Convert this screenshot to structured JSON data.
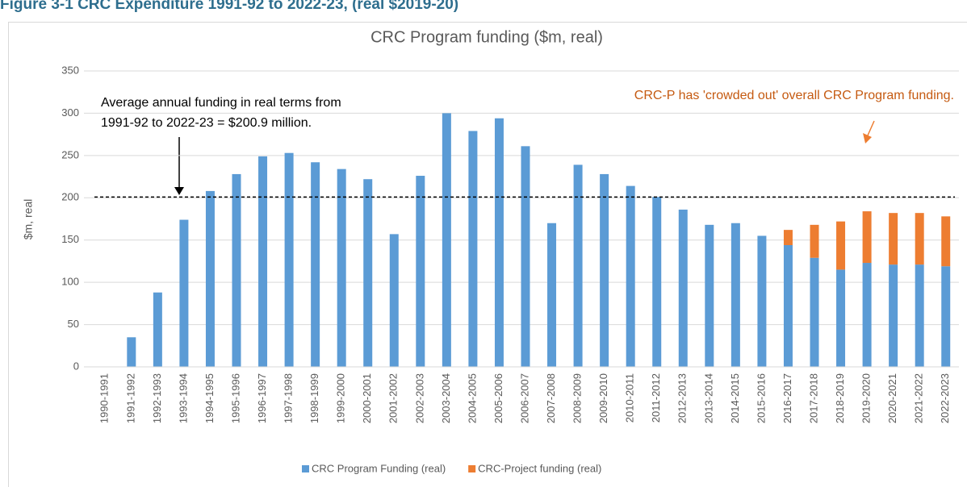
{
  "chart_data": {
    "type": "bar",
    "figure_title": "Figure 3-1 CRC Expenditure 1991-92 to 2022-23, (real $2019-20)",
    "title": "CRC Program funding ($m, real)",
    "y_label": "$m, real",
    "categories": [
      "1990-1991",
      "1991-1992",
      "1992-1993",
      "1993-1994",
      "1994-1995",
      "1995-1996",
      "1996-1997",
      "1997-1998",
      "1998-1999",
      "1999-2000",
      "2000-2001",
      "2001-2002",
      "2002-2003",
      "2003-2004",
      "2004-2005",
      "2005-2006",
      "2006-2007",
      "2007-2008",
      "2008-2009",
      "2009-2010",
      "2010-2011",
      "2011-2012",
      "2012-2013",
      "2013-2014",
      "2014-2015",
      "2015-2016",
      "2016-2017",
      "2017-2018",
      "2018-2019",
      "2019-2020",
      "2020-2021",
      "2021-2022",
      "2022-2023"
    ],
    "series": [
      {
        "name": "CRC Program Funding (real)",
        "color": "#5b9bd5",
        "values": [
          0,
          35,
          88,
          174,
          208,
          228,
          249,
          253,
          242,
          234,
          222,
          157,
          226,
          300,
          279,
          294,
          261,
          170,
          239,
          228,
          214,
          201,
          186,
          168,
          170,
          155,
          144,
          129,
          115,
          123,
          121,
          121,
          119
        ]
      },
      {
        "name": "CRC-Project funding (real)",
        "color": "#ed7d31",
        "values": [
          null,
          null,
          null,
          null,
          null,
          null,
          null,
          null,
          null,
          null,
          null,
          null,
          null,
          null,
          null,
          null,
          null,
          null,
          null,
          null,
          null,
          null,
          null,
          null,
          null,
          null,
          18,
          39,
          57,
          61,
          61,
          61,
          59
        ]
      }
    ],
    "stacked": true,
    "reference_line": 200.9,
    "annotations": [
      {
        "lines": [
          "Average annual funding in real terms from",
          "1991-92 to 2022-23 = $200.9 million."
        ],
        "color": "#000000"
      },
      {
        "lines": [
          "CRC-P has 'crowded out' overall CRC Program funding."
        ],
        "color": "#c55a11"
      }
    ],
    "ylim": [
      0,
      350
    ],
    "yticks": [
      0,
      50,
      100,
      150,
      200,
      250,
      300,
      350
    ],
    "grid": true,
    "legend": "bottom"
  }
}
